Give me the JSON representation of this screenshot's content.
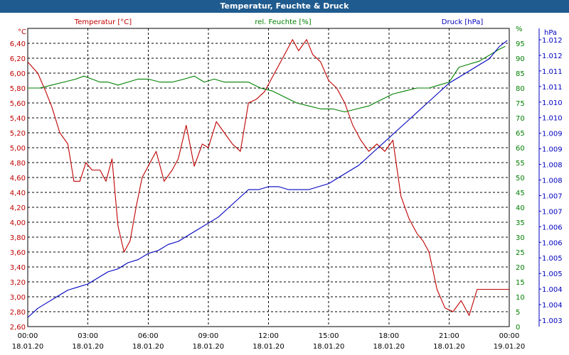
{
  "window_title": "Temperatur, Feuchte & Druck",
  "colors": {
    "temperature": "#c00000",
    "humidity": "#008000",
    "pressure": "#0000c0",
    "titlebar": "#1f5b8e",
    "grid": "#000000"
  },
  "chart_data": {
    "type": "line",
    "title": "Temperatur, Feuchte & Druck",
    "grid": true,
    "x_ticks": [
      {
        "time": "00:00",
        "date": "18.01.20"
      },
      {
        "time": "03:00",
        "date": "18.01.20"
      },
      {
        "time": "06:00",
        "date": "18.01.20"
      },
      {
        "time": "09:00",
        "date": "18.01.20"
      },
      {
        "time": "12:00",
        "date": "18.01.20"
      },
      {
        "time": "15:00",
        "date": "18.01.20"
      },
      {
        "time": "18:00",
        "date": "18.01.20"
      },
      {
        "time": "21:00",
        "date": "18.01.20"
      },
      {
        "time": "00:00",
        "date": "19.01.20"
      }
    ],
    "x_range_hours": [
      0,
      24
    ],
    "axes": {
      "temperature": {
        "unit": "°C",
        "header": "Temperatur [°C]",
        "ylim": [
          2.6,
          6.6
        ],
        "ticks": [
          "2,60",
          "2,80",
          "3,00",
          "3,20",
          "3,40",
          "3,60",
          "3,80",
          "4,00",
          "4,20",
          "4,40",
          "4,60",
          "4,80",
          "5,00",
          "5,20",
          "5,40",
          "5,60",
          "5,80",
          "6,00",
          "6,20",
          "6,40"
        ]
      },
      "humidity": {
        "unit": "%",
        "header": "rel. Feuchte [%]",
        "ylim": [
          0,
          100
        ],
        "ticks": [
          "0",
          "5",
          "10",
          "15",
          "20",
          "25",
          "30",
          "35",
          "40",
          "45",
          "50",
          "55",
          "60",
          "65",
          "70",
          "75",
          "80",
          "85",
          "90",
          "95",
          "%"
        ]
      },
      "pressure": {
        "unit": "hPa",
        "header": "Druck [hPa]",
        "ylim": [
          1002.8,
          1012.6
        ],
        "ticks": [
          "1.003",
          "1.004",
          "1.004",
          "1.005",
          "1.005",
          "1.006",
          "1.006",
          "1.007",
          "1.007",
          "1.008",
          "1.008",
          "1.009",
          "1.009",
          "1.010",
          "1.010",
          "1.011",
          "1.011",
          "1.012",
          "1.012"
        ]
      }
    },
    "series": [
      {
        "name": "Temperatur [°C]",
        "axis": "temperature",
        "x": [
          0,
          0.5,
          0.9,
          1.2,
          1.6,
          2.0,
          2.3,
          2.6,
          2.9,
          3.2,
          3.6,
          3.9,
          4.2,
          4.5,
          4.8,
          5.1,
          5.4,
          5.7,
          6.0,
          6.4,
          6.8,
          7.2,
          7.5,
          7.9,
          8.3,
          8.7,
          9.0,
          9.4,
          9.8,
          10.2,
          10.6,
          11.0,
          11.4,
          11.8,
          12.1,
          12.4,
          12.8,
          13.2,
          13.5,
          13.9,
          14.2,
          14.6,
          15.0,
          15.4,
          15.8,
          16.2,
          16.6,
          17.0,
          17.4,
          17.8,
          18.2,
          18.6,
          19.0,
          19.4,
          19.7,
          20.0,
          20.4,
          20.8,
          21.2,
          21.6,
          22.0,
          22.4,
          22.7,
          23.0,
          23.4,
          23.7,
          24.0
        ],
        "values": [
          6.15,
          6.0,
          5.75,
          5.55,
          5.2,
          5.05,
          4.55,
          4.55,
          4.8,
          4.7,
          4.7,
          4.55,
          4.85,
          3.95,
          3.6,
          3.75,
          4.2,
          4.6,
          4.75,
          4.95,
          4.55,
          4.7,
          4.85,
          5.3,
          4.75,
          5.05,
          5.0,
          5.35,
          5.2,
          5.05,
          4.95,
          5.6,
          5.65,
          5.75,
          5.9,
          6.05,
          6.25,
          6.45,
          6.3,
          6.45,
          6.25,
          6.15,
          5.9,
          5.8,
          5.6,
          5.3,
          5.1,
          4.95,
          5.05,
          4.95,
          5.1,
          4.35,
          4.05,
          3.85,
          3.75,
          3.6,
          3.1,
          2.85,
          2.8,
          2.95,
          2.75,
          3.1,
          3.1,
          3.1,
          3.1,
          3.1,
          3.1
        ]
      },
      {
        "name": "rel. Feuchte [%]",
        "axis": "humidity",
        "x": [
          0,
          0.6,
          1.2,
          1.8,
          2.4,
          2.8,
          3.2,
          3.6,
          4.0,
          4.5,
          5.0,
          5.5,
          6.0,
          6.6,
          7.2,
          7.8,
          8.3,
          8.8,
          9.3,
          9.8,
          10.4,
          11.0,
          11.6,
          12.2,
          12.8,
          13.4,
          14.0,
          14.6,
          15.2,
          15.8,
          16.4,
          17.0,
          17.6,
          18.2,
          18.8,
          19.4,
          20.0,
          20.5,
          21.0,
          21.5,
          22.0,
          22.5,
          23.0,
          23.5,
          23.8
        ],
        "values": [
          80,
          80,
          81,
          82,
          83,
          84,
          83,
          82,
          82,
          81,
          82,
          83,
          83,
          82,
          82,
          83,
          84,
          82,
          83,
          82,
          82,
          82,
          80,
          79,
          77,
          75,
          74,
          73,
          73,
          72,
          73,
          74,
          76,
          78,
          79,
          80,
          80,
          81,
          82,
          87,
          88,
          89,
          91,
          93,
          94
        ]
      },
      {
        "name": "Druck [hPa]",
        "axis": "pressure",
        "x": [
          0,
          0.5,
          1.0,
          1.5,
          2.0,
          2.5,
          3.0,
          3.5,
          4.0,
          4.5,
          5.0,
          5.5,
          6.0,
          6.5,
          7.0,
          7.5,
          8.0,
          8.5,
          9.0,
          9.5,
          10.0,
          10.5,
          11.0,
          11.5,
          12.0,
          12.5,
          13.0,
          13.5,
          14.0,
          14.5,
          15.0,
          15.5,
          16.0,
          16.5,
          17.0,
          17.5,
          18.0,
          18.5,
          19.0,
          19.5,
          20.0,
          20.5,
          21.0,
          21.5,
          22.0,
          22.5,
          23.0,
          23.5,
          23.9
        ],
        "values": [
          1003.1,
          1003.4,
          1003.6,
          1003.8,
          1004.0,
          1004.1,
          1004.2,
          1004.4,
          1004.6,
          1004.7,
          1004.9,
          1005.0,
          1005.2,
          1005.3,
          1005.5,
          1005.6,
          1005.8,
          1006.0,
          1006.2,
          1006.4,
          1006.7,
          1007.0,
          1007.3,
          1007.3,
          1007.4,
          1007.4,
          1007.3,
          1007.3,
          1007.3,
          1007.4,
          1007.5,
          1007.7,
          1007.9,
          1008.1,
          1008.4,
          1008.7,
          1009.0,
          1009.3,
          1009.6,
          1009.9,
          1010.2,
          1010.5,
          1010.8,
          1011.0,
          1011.2,
          1011.4,
          1011.6,
          1012.0,
          1012.2
        ]
      }
    ]
  }
}
